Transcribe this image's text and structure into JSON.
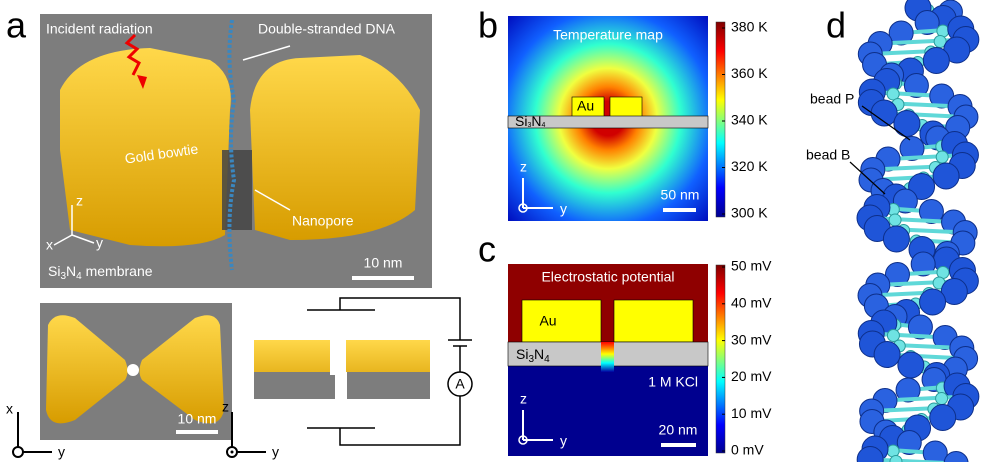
{
  "si3n4": [
    "Si",
    "3",
    "N",
    "4"
  ],
  "panel_a": {
    "label": "a",
    "incident": "Incident radiation",
    "dna": "Double-stranded DNA",
    "bowtie": "Gold bowtie",
    "nanopore": "Nanopore",
    "membrane": " membrane",
    "scale": "10 nm",
    "axes": [
      "z",
      "x",
      "y"
    ]
  },
  "panel_a_top": {
    "axes": [
      "x",
      "y"
    ],
    "scale": "10 nm"
  },
  "panel_a_side": {
    "axes": [
      "z",
      "y"
    ],
    "meter": "A"
  },
  "panel_b": {
    "label": "b",
    "title": "Temperature map",
    "au": "Au",
    "axes": [
      "z",
      "y"
    ],
    "scale": "50 nm",
    "colorbar": [
      "380 K",
      "360 K",
      "340 K",
      "320 K",
      "300 K"
    ]
  },
  "panel_c": {
    "label": "c",
    "title": "Electrostatic potential",
    "au": "Au",
    "kcl": "1 M KCl",
    "axes": [
      "z",
      "y"
    ],
    "scale": "20 nm",
    "colorbar": [
      "50 mV",
      "40 mV",
      "30 mV",
      "20 mV",
      "10 mV",
      "0 mV"
    ]
  },
  "panel_d": {
    "label": "d",
    "bead_p": "bead P",
    "bead_b": "bead B"
  }
}
